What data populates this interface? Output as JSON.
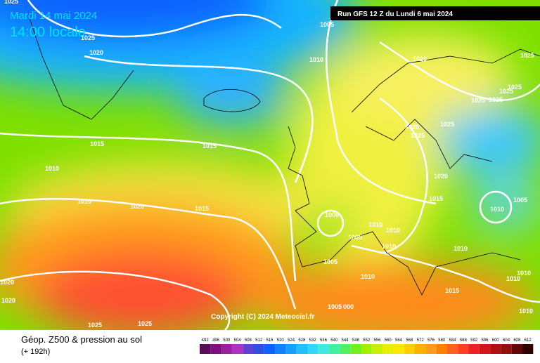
{
  "header": {
    "date": "Mardi 14 mai 2024",
    "time": "14:00 locale",
    "run": "Run GFS 12 Z du Lundi 6 mai 2024"
  },
  "copyright": "Copyright (C) 2024 Meteociel.fr",
  "isobar_labels": [
    "1025",
    "1025",
    "1020",
    "1005",
    "1010",
    "1020",
    "1025",
    "1025",
    "1025",
    "1025",
    "1025",
    "1015",
    "1015",
    "1025",
    "1025",
    "1025",
    "1010",
    "1020",
    "1010",
    "1020",
    "1015",
    "1015",
    "1010",
    "1005",
    "1000",
    "1010",
    "1010",
    "1005",
    "1010",
    "1010",
    "1005",
    "1020",
    "1010",
    "1010",
    "1010",
    "1020",
    "1015",
    "1005",
    "000",
    "1010",
    "1025",
    "1025"
  ],
  "footer": {
    "title": "Géop. Z500 & pression au sol",
    "subtitle": "(+ 192h)"
  },
  "legend": {
    "values": [
      492,
      496,
      500,
      504,
      508,
      512,
      516,
      520,
      524,
      528,
      532,
      536,
      540,
      544,
      548,
      552,
      556,
      560,
      564,
      568,
      572,
      576,
      580,
      584,
      588,
      592,
      596,
      600,
      604,
      608,
      612
    ]
  }
}
